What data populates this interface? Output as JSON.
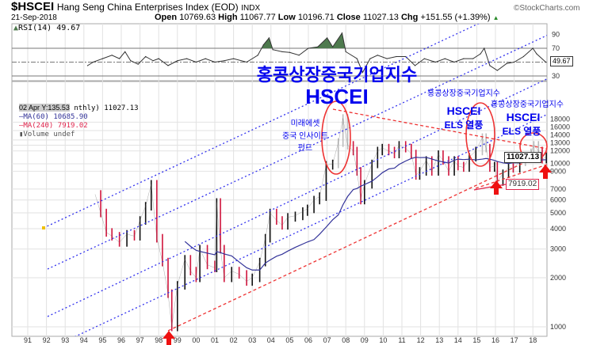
{
  "header": {
    "symbol": "$HSCEI",
    "name": "Hang Seng China Enterprises Index (EOD)",
    "exchange": "INDX",
    "date": "21-Sep-2018",
    "brand": "©StockCharts.com",
    "open_label": "Open",
    "open": "10769.63",
    "high_label": "High",
    "high": "11067.77",
    "low_label": "Low",
    "low": "10196.71",
    "close_label": "Close",
    "close": "11027.13",
    "chg_label": "Chg",
    "chg": "+151.55 (+1.39%)"
  },
  "legend": {
    "tooltip": "02 Apr Y:135.53",
    "price": "nthly) 11027.13",
    "ma60": "MA(60) 10685.90",
    "ma240": "MA(240) 7919.02",
    "volume": "Volume undef"
  },
  "colors": {
    "ma60": "#333399",
    "ma240": "#e0224a",
    "rsi_fill": "#4e7a4e",
    "annot": "#0000ee",
    "channel": "#3333ee",
    "oval": "#ee3333"
  },
  "annotations": {
    "big_title": "홍콩상장중국기업지수",
    "big_hscei": "HSCEI",
    "fund_1": "미래에셋",
    "fund_2": "중국 인사이트",
    "fund_3": "펀드",
    "els1_title": "홍콩상장중국기업지수",
    "els1_hscei": "HSCEI",
    "els1_els": "ELS 열풍",
    "els2_title": "홍콩상장중국기업지수",
    "els2_hscei": "HSCEI",
    "els2_els": "ELS 열풍"
  },
  "chart_data": [
    {
      "type": "line",
      "title": "RSI(14) 49.67",
      "ylim": [
        10,
        100
      ],
      "y_ticks": [
        90,
        70,
        30
      ],
      "reference_lines": [
        70,
        50,
        30
      ],
      "last_value_label": "49.67",
      "points": [
        [
          1994.2,
          45
        ],
        [
          1994.5,
          50
        ],
        [
          1995.0,
          55
        ],
        [
          1995.5,
          60
        ],
        [
          1995.9,
          55
        ],
        [
          1996.2,
          65
        ],
        [
          1996.5,
          52
        ],
        [
          1996.9,
          47
        ],
        [
          1997.3,
          58
        ],
        [
          1997.7,
          52
        ],
        [
          1998.0,
          55
        ],
        [
          1998.5,
          45
        ],
        [
          1999.0,
          52
        ],
        [
          1999.5,
          55
        ],
        [
          2000.0,
          50
        ],
        [
          2000.5,
          55
        ],
        [
          2001.0,
          50
        ],
        [
          2001.5,
          52
        ],
        [
          2002.0,
          55
        ],
        [
          2002.7,
          50
        ],
        [
          2003.3,
          60
        ],
        [
          2003.6,
          75
        ],
        [
          2003.9,
          85
        ],
        [
          2004.1,
          68
        ],
        [
          2004.6,
          65
        ],
        [
          2005.0,
          64
        ],
        [
          2005.5,
          60
        ],
        [
          2006.0,
          70
        ],
        [
          2006.5,
          72
        ],
        [
          2007.0,
          85
        ],
        [
          2007.3,
          72
        ],
        [
          2007.8,
          92
        ],
        [
          2008.0,
          65
        ],
        [
          2008.6,
          55
        ],
        [
          2008.9,
          35
        ],
        [
          2009.3,
          55
        ],
        [
          2009.7,
          60
        ],
        [
          2010.2,
          55
        ],
        [
          2010.7,
          58
        ],
        [
          2011.2,
          58
        ],
        [
          2011.7,
          45
        ],
        [
          2012.2,
          55
        ],
        [
          2012.8,
          50
        ],
        [
          2013.3,
          55
        ],
        [
          2013.8,
          50
        ],
        [
          2014.3,
          55
        ],
        [
          2014.8,
          55
        ],
        [
          2015.2,
          62
        ],
        [
          2015.4,
          70
        ],
        [
          2015.7,
          45
        ],
        [
          2016.1,
          38
        ],
        [
          2016.6,
          48
        ],
        [
          2017.0,
          50
        ],
        [
          2017.5,
          58
        ],
        [
          2018.0,
          70
        ],
        [
          2018.2,
          62
        ],
        [
          2018.7,
          49.67
        ]
      ]
    },
    {
      "type": "line",
      "title": "$HSCEI monthly, log scale",
      "yscale": "log",
      "ylim": [
        900,
        30000
      ],
      "y_ticks": [
        1000,
        2000,
        3000,
        4000,
        5000,
        6000,
        7000,
        9000,
        10000,
        12000,
        13000,
        14000,
        16000,
        18000
      ],
      "x_ticks": [
        "91",
        "92",
        "93",
        "94",
        "95",
        "96",
        "97",
        "98",
        "99",
        "00",
        "01",
        "02",
        "03",
        "04",
        "05",
        "06",
        "07",
        "08",
        "09",
        "10",
        "11",
        "12",
        "13",
        "14",
        "15",
        "16",
        "17",
        "18"
      ],
      "x_range": [
        1991,
        2019
      ],
      "last_close_label": "11027.13",
      "ma240_label": "7919.02",
      "series": [
        {
          "name": "HSCEI",
          "points": [
            [
              1994.6,
              6500
            ],
            [
              1994.9,
              5000
            ],
            [
              1995.2,
              3800
            ],
            [
              1995.5,
              3600
            ],
            [
              1995.9,
              3300
            ],
            [
              1996.3,
              3700
            ],
            [
              1996.7,
              3600
            ],
            [
              1997.0,
              4500
            ],
            [
              1997.3,
              5500
            ],
            [
              1997.6,
              7500
            ],
            [
              1997.9,
              3500
            ],
            [
              1998.2,
              2500
            ],
            [
              1998.5,
              1600
            ],
            [
              1998.7,
              1000
            ],
            [
              1999.0,
              1800
            ],
            [
              1999.4,
              2600
            ],
            [
              1999.7,
              2200
            ],
            [
              2000.0,
              2000
            ],
            [
              2000.2,
              3000
            ],
            [
              2000.6,
              2400
            ],
            [
              2001.0,
              2300
            ],
            [
              2001.1,
              5800
            ],
            [
              2001.3,
              3000
            ],
            [
              2001.5,
              2000
            ],
            [
              2001.9,
              2200
            ],
            [
              2002.3,
              2100
            ],
            [
              2002.7,
              1900
            ],
            [
              2003.0,
              2000
            ],
            [
              2003.4,
              2500
            ],
            [
              2003.7,
              3500
            ],
            [
              2003.95,
              5000
            ],
            [
              2004.3,
              4500
            ],
            [
              2004.6,
              4200
            ],
            [
              2004.9,
              4700
            ],
            [
              2005.3,
              4800
            ],
            [
              2005.7,
              5100
            ],
            [
              2005.95,
              5300
            ],
            [
              2006.3,
              6000
            ],
            [
              2006.6,
              6300
            ],
            [
              2006.95,
              9800
            ],
            [
              2007.3,
              10000
            ],
            [
              2007.6,
              13500
            ],
            [
              2007.85,
              19000
            ],
            [
              2008.1,
              13000
            ],
            [
              2008.4,
              12000
            ],
            [
              2008.6,
              9000
            ],
            [
              2008.8,
              6000
            ],
            [
              2009.0,
              7500
            ],
            [
              2009.4,
              10000
            ],
            [
              2009.7,
              12000
            ],
            [
              2009.95,
              12500
            ],
            [
              2010.3,
              12000
            ],
            [
              2010.6,
              11500
            ],
            [
              2010.85,
              13000
            ],
            [
              2011.2,
              12500
            ],
            [
              2011.5,
              11500
            ],
            [
              2011.75,
              8500
            ],
            [
              2011.95,
              9000
            ],
            [
              2012.3,
              10500
            ],
            [
              2012.6,
              9000
            ],
            [
              2012.95,
              11400
            ],
            [
              2013.2,
              10500
            ],
            [
              2013.5,
              9000
            ],
            [
              2013.8,
              10500
            ],
            [
              2014.0,
              9700
            ],
            [
              2014.3,
              9500
            ],
            [
              2014.6,
              11000
            ],
            [
              2014.95,
              12000
            ],
            [
              2015.3,
              14500
            ],
            [
              2015.5,
              12500
            ],
            [
              2015.7,
              9500
            ],
            [
              2015.95,
              9700
            ],
            [
              2016.1,
              7800
            ],
            [
              2016.4,
              8700
            ],
            [
              2016.7,
              9500
            ],
            [
              2016.95,
              9400
            ],
            [
              2017.3,
              10300
            ],
            [
              2017.6,
              11000
            ],
            [
              2017.9,
              11700
            ],
            [
              2018.05,
              13000
            ],
            [
              2018.3,
              12000
            ],
            [
              2018.5,
              10700
            ],
            [
              2018.72,
              11027.13
            ]
          ]
        },
        {
          "name": "MA(60)",
          "last": 10685.9
        },
        {
          "name": "MA(240)",
          "last": 7919.02
        }
      ]
    }
  ]
}
